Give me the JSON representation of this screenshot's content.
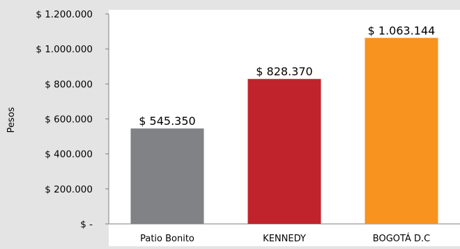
{
  "chart_data": {
    "type": "bar",
    "categories": [
      "Patio Bonito",
      "KENNEDY",
      "BOGOTÁ D.C"
    ],
    "values": [
      545350,
      828370,
      1063144
    ],
    "value_labels": [
      "$ 545.350",
      "$ 828.370",
      "$ 1.063.144"
    ],
    "bar_colors": [
      "#818285",
      "#c0232b",
      "#f7931e"
    ],
    "ylabel": "Pesos",
    "ylim": [
      0,
      1200000
    ],
    "yticks": [
      0,
      200000,
      400000,
      600000,
      800000,
      1000000,
      1200000
    ],
    "ytick_labels": [
      "$ -",
      "$ 200.000",
      "$ 400.000",
      "$ 600.000",
      "$ 800.000",
      "$ 1.000.000",
      "$ 1.200.000"
    ],
    "grid": false,
    "legend": "none"
  },
  "colors": {
    "background": "#e4e4e4",
    "plot_background": "#ffffff",
    "axis": "#7f7f7f",
    "text": "#000000"
  }
}
